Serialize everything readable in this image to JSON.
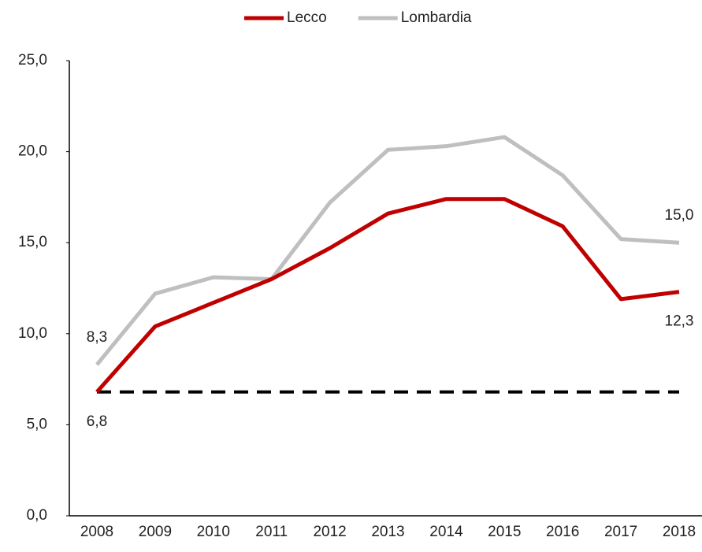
{
  "chart_data": {
    "type": "line",
    "categories": [
      "2008",
      "2009",
      "2010",
      "2011",
      "2012",
      "2013",
      "2014",
      "2015",
      "2016",
      "2017",
      "2018"
    ],
    "series": [
      {
        "name": "Lecco",
        "color": "#c00000",
        "values": [
          6.8,
          10.4,
          11.7,
          13.0,
          14.7,
          16.6,
          17.4,
          17.4,
          15.9,
          11.9,
          12.3
        ],
        "value_labels": [
          "6,8",
          null,
          null,
          null,
          null,
          null,
          null,
          null,
          null,
          null,
          "12,3"
        ]
      },
      {
        "name": "Lombardia",
        "color": "#bfbfbf",
        "values": [
          8.3,
          12.2,
          13.1,
          13.0,
          17.2,
          20.1,
          20.3,
          20.8,
          18.7,
          15.2,
          15.0
        ],
        "value_labels": [
          "8,3",
          null,
          null,
          null,
          null,
          null,
          null,
          null,
          null,
          null,
          "15,0"
        ]
      }
    ],
    "reference_line": 6.8,
    "ylim": [
      0,
      25
    ],
    "yticks": [
      {
        "value": 0,
        "label": "0,0"
      },
      {
        "value": 5,
        "label": "5,0"
      },
      {
        "value": 10,
        "label": "10,0"
      },
      {
        "value": 15,
        "label": "15,0"
      },
      {
        "value": 20,
        "label": "20,0"
      },
      {
        "value": 25,
        "label": "25,0"
      }
    ],
    "legend": "top"
  }
}
